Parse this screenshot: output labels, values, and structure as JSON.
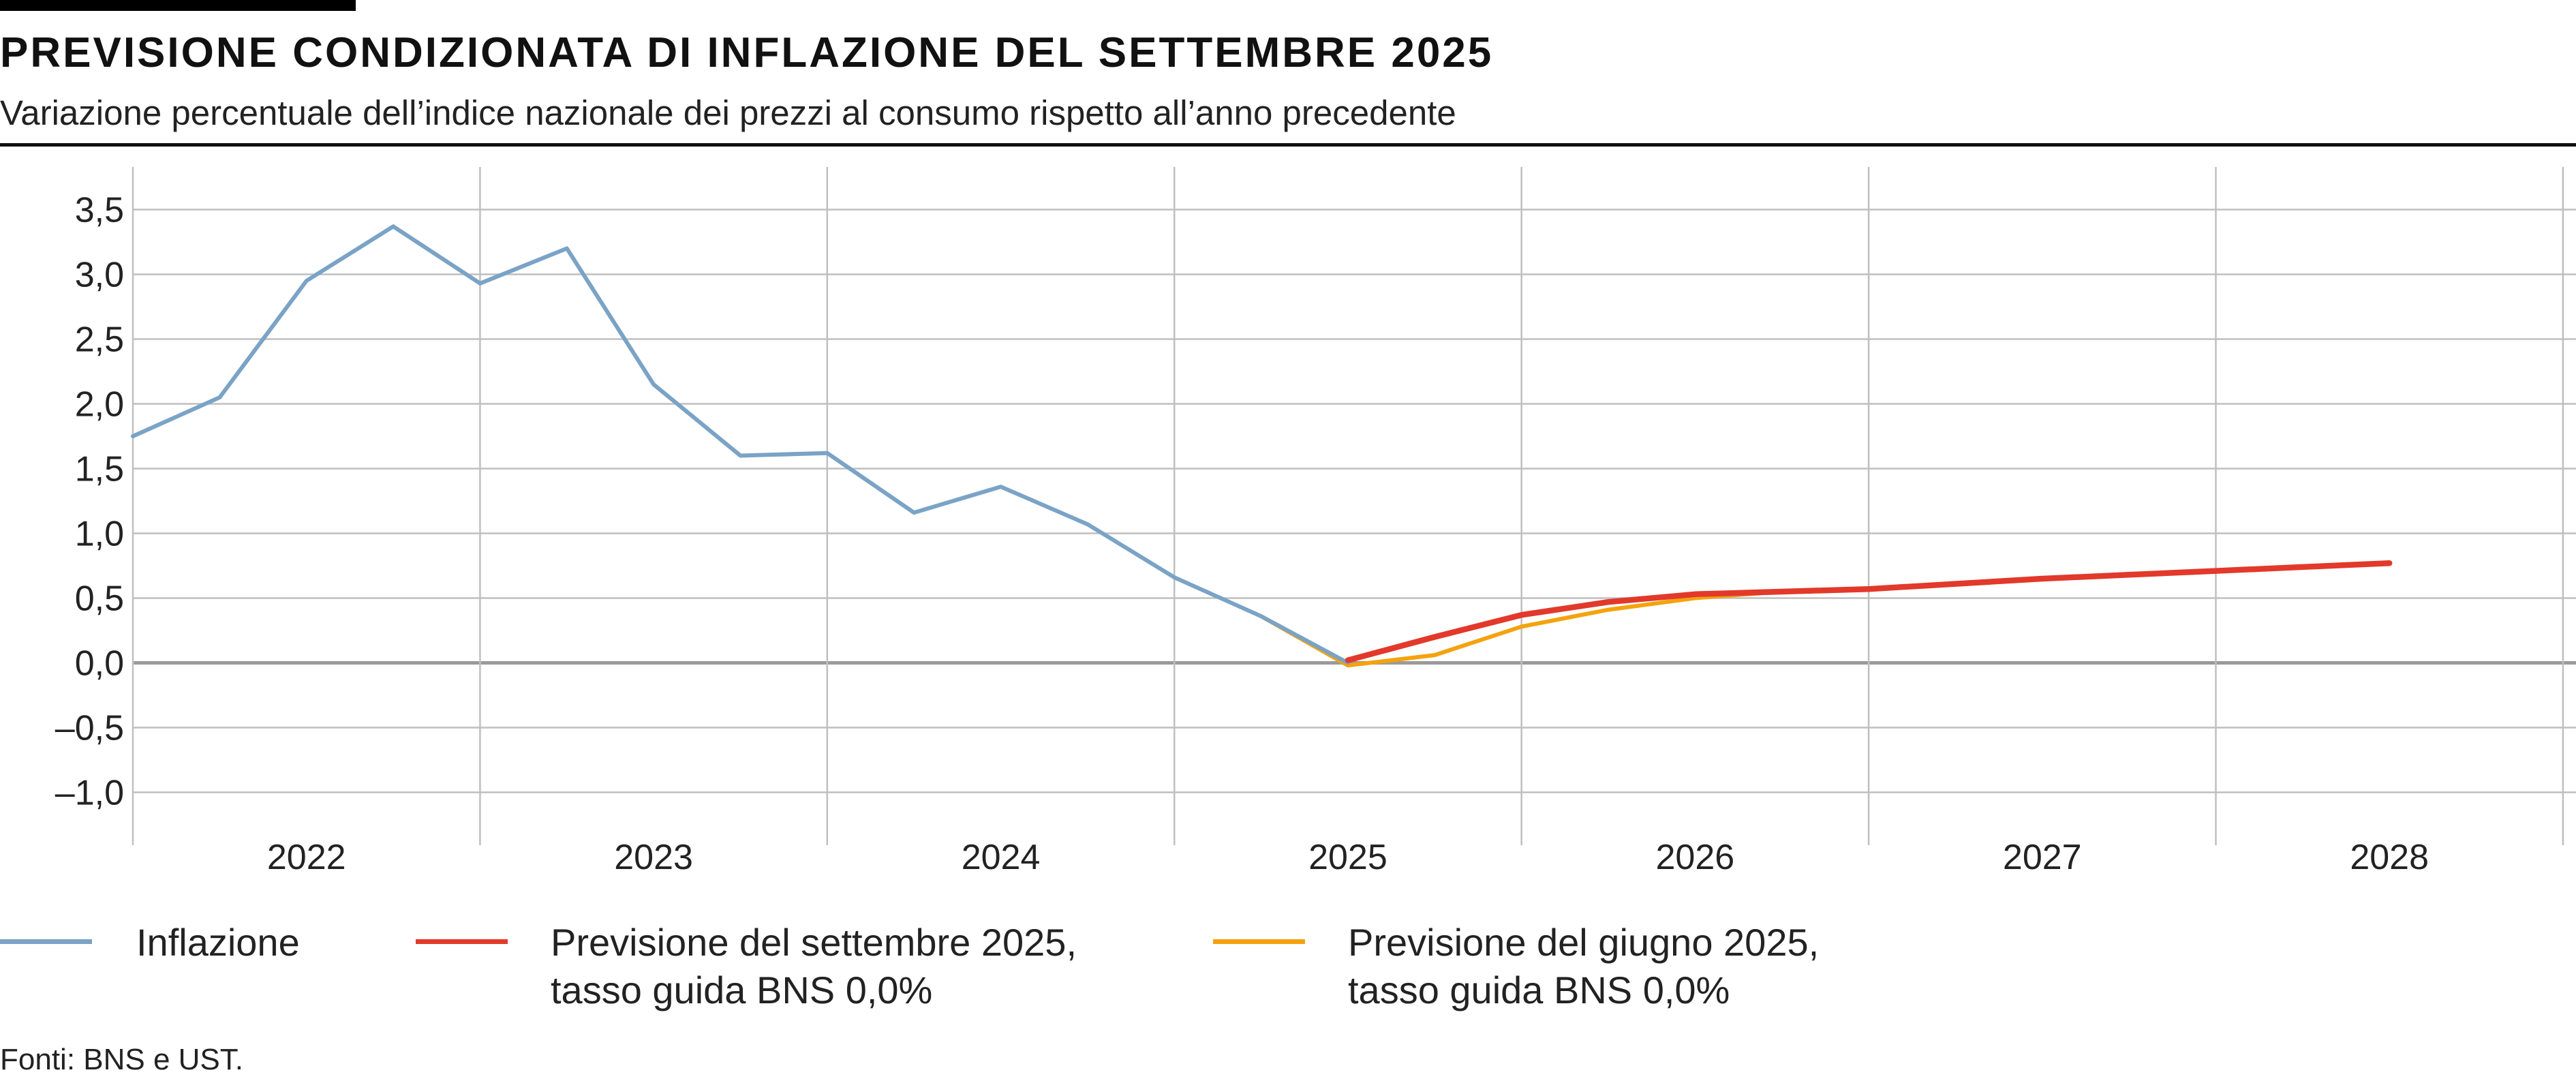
{
  "header": {
    "title": "PREVISIONE CONDIZIONATA DI INFLAZIONE DEL SETTEMBRE 2025",
    "subtitle": "Variazione percentuale dell’indice nazionale dei prezzi al consumo rispetto all’anno precedente"
  },
  "legend": {
    "inflation": "Inflazione",
    "sept_line1": "Previsione del settembre 2025,",
    "sept_line2": "tasso guida BNS 0,0%",
    "june_line1": "Previsione del giugno 2025,",
    "june_line2": "tasso guida BNS 0,0%"
  },
  "source": "Fonti: BNS e UST.",
  "colors": {
    "inflation": "#7aa3c6",
    "sept": "#e2392b",
    "june": "#f4a30e",
    "grid": "#bfbfbf",
    "zero": "#9a9a9a"
  },
  "chart_data": {
    "type": "line",
    "x_unit": "quarter",
    "xlim": [
      "2021-Q3",
      "2028-Q3"
    ],
    "ylim": [
      -1.25,
      3.75
    ],
    "x_tick_labels": [
      "2022",
      "2023",
      "2024",
      "2025",
      "2026",
      "2027",
      "2028"
    ],
    "y_ticks": [
      3.5,
      3.0,
      2.5,
      2.0,
      1.5,
      1.0,
      0.5,
      0.0,
      -0.5,
      -1.0
    ],
    "y_tick_labels": [
      "3,5",
      "3,0",
      "2,5",
      "2,0",
      "1,5",
      "1,0",
      "0,5",
      "0,0",
      "–0,5",
      "–1,0"
    ],
    "series": [
      {
        "name": "Inflazione",
        "color_key": "inflation",
        "points": [
          {
            "x": "2021-Q3",
            "y": 1.75
          },
          {
            "x": "2021-Q4",
            "y": 2.05
          },
          {
            "x": "2022-Q1",
            "y": 2.95
          },
          {
            "x": "2022-Q2",
            "y": 3.37
          },
          {
            "x": "2022-Q3",
            "y": 2.93
          },
          {
            "x": "2022-Q4",
            "y": 3.2
          },
          {
            "x": "2023-Q1",
            "y": 2.15
          },
          {
            "x": "2023-Q2",
            "y": 1.6
          },
          {
            "x": "2023-Q3",
            "y": 1.62
          },
          {
            "x": "2023-Q4",
            "y": 1.16
          },
          {
            "x": "2024-Q1",
            "y": 1.36
          },
          {
            "x": "2024-Q2",
            "y": 1.07
          },
          {
            "x": "2024-Q3",
            "y": 0.66
          },
          {
            "x": "2024-Q4",
            "y": 0.36
          },
          {
            "x": "2025-Q1",
            "y": 0.0
          }
        ]
      },
      {
        "name": "Previsione del settembre 2025, tasso guida BNS 0,0%",
        "color_key": "sept",
        "points": [
          {
            "x": "2025-Q1",
            "y": 0.02
          },
          {
            "x": "2025-Q2",
            "y": 0.2
          },
          {
            "x": "2025-Q3",
            "y": 0.37
          },
          {
            "x": "2025-Q4",
            "y": 0.47
          },
          {
            "x": "2026-Q1",
            "y": 0.53
          },
          {
            "x": "2026-Q2",
            "y": 0.55
          },
          {
            "x": "2026-Q3",
            "y": 0.57
          },
          {
            "x": "2026-Q4",
            "y": 0.61
          },
          {
            "x": "2027-Q1",
            "y": 0.65
          },
          {
            "x": "2027-Q2",
            "y": 0.68
          },
          {
            "x": "2027-Q3",
            "y": 0.71
          },
          {
            "x": "2027-Q4",
            "y": 0.74
          },
          {
            "x": "2028-Q1",
            "y": 0.77
          }
        ]
      },
      {
        "name": "Previsione del giugno 2025, tasso guida BNS 0,0%",
        "color_key": "june",
        "points": [
          {
            "x": "2024-Q4",
            "y": 0.36
          },
          {
            "x": "2025-Q1",
            "y": -0.02
          },
          {
            "x": "2025-Q2",
            "y": 0.06
          },
          {
            "x": "2025-Q3",
            "y": 0.28
          },
          {
            "x": "2025-Q4",
            "y": 0.41
          },
          {
            "x": "2026-Q1",
            "y": 0.5
          },
          {
            "x": "2026-Q2",
            "y": 0.55
          }
        ]
      }
    ]
  }
}
